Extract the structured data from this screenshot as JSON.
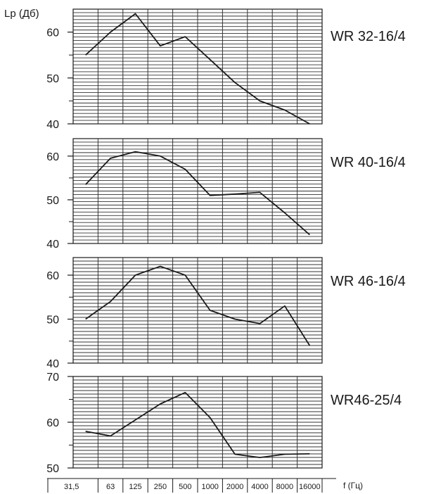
{
  "chart_data": {
    "type": "line",
    "ylabel": "Lp  (Дб)",
    "xlabel": "f (Гц)",
    "categories": [
      "31,5",
      "63",
      "125",
      "250",
      "500",
      "1000",
      "2000",
      "4000",
      "8000",
      "16000"
    ],
    "panels": [
      {
        "title": "WR 32-16/4",
        "ylim": [
          40,
          65
        ],
        "yticks": [
          40,
          50,
          60
        ],
        "values": [
          55,
          60,
          64,
          57,
          59,
          54,
          49,
          45,
          43,
          40
        ]
      },
      {
        "title": "WR 40-16/4",
        "ylim": [
          40,
          64
        ],
        "yticks": [
          40,
          50,
          60
        ],
        "values": [
          53.5,
          59.5,
          61,
          60,
          57,
          51,
          51.3,
          51.7,
          47,
          42
        ]
      },
      {
        "title": "WR 46-16/4",
        "ylim": [
          40,
          64
        ],
        "yticks": [
          40,
          50,
          60
        ],
        "values": [
          50,
          54,
          60,
          62,
          60,
          52,
          50,
          49,
          53,
          44
        ]
      },
      {
        "title": "WR46-25/4",
        "ylim": [
          50,
          70
        ],
        "yticks": [
          50,
          60,
          70
        ],
        "values": [
          58,
          57,
          60.5,
          64,
          66.5,
          61,
          53,
          52.3,
          53,
          53.1
        ]
      }
    ]
  }
}
